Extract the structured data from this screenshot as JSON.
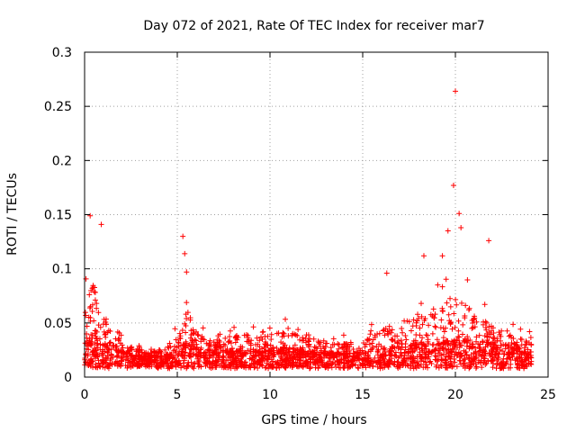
{
  "chart_data": {
    "type": "scatter",
    "title": "Day 072 of 2021, Rate Of TEC Index for receiver mar7",
    "xlabel": "GPS time / hours",
    "ylabel": "ROTI / TECUs",
    "xlim": [
      0,
      25
    ],
    "ylim": [
      0,
      0.3
    ],
    "xticks": [
      0,
      5,
      10,
      15,
      20,
      25
    ],
    "yticks": [
      0,
      0.05,
      0.1,
      0.15,
      0.2,
      0.25,
      0.3
    ],
    "xtick_labels": [
      "0",
      "5",
      "10",
      "15",
      "20",
      "25"
    ],
    "ytick_labels": [
      "0",
      "0.05",
      "0.1",
      "0.15",
      "0.2",
      "0.25",
      "0.3"
    ],
    "grid": true,
    "marker": "+",
    "series_color": "#ff0000",
    "notable_points": [
      {
        "x": 0.3,
        "y": 0.149
      },
      {
        "x": 0.9,
        "y": 0.141
      },
      {
        "x": 5.3,
        "y": 0.13
      },
      {
        "x": 5.4,
        "y": 0.114
      },
      {
        "x": 5.5,
        "y": 0.097
      },
      {
        "x": 16.3,
        "y": 0.096
      },
      {
        "x": 18.3,
        "y": 0.112
      },
      {
        "x": 19.3,
        "y": 0.112
      },
      {
        "x": 19.6,
        "y": 0.135
      },
      {
        "x": 19.9,
        "y": 0.177
      },
      {
        "x": 20.0,
        "y": 0.264
      },
      {
        "x": 20.2,
        "y": 0.151
      },
      {
        "x": 20.3,
        "y": 0.138
      },
      {
        "x": 21.8,
        "y": 0.126
      },
      {
        "x": 24.0,
        "y": 0.042
      }
    ],
    "envelope": {
      "x": [
        0,
        0.5,
        1,
        1.5,
        2,
        3,
        4,
        5,
        5.5,
        6,
        7,
        8,
        9,
        10,
        11,
        12,
        13,
        14,
        15,
        16,
        17,
        18,
        19,
        20,
        21,
        22,
        23,
        24
      ],
      "typical": [
        0.03,
        0.035,
        0.03,
        0.028,
        0.022,
        0.018,
        0.018,
        0.022,
        0.03,
        0.025,
        0.022,
        0.022,
        0.022,
        0.022,
        0.024,
        0.022,
        0.02,
        0.02,
        0.02,
        0.023,
        0.025,
        0.027,
        0.028,
        0.03,
        0.03,
        0.028,
        0.025,
        0.02
      ],
      "upper": [
        0.1,
        0.12,
        0.08,
        0.06,
        0.04,
        0.03,
        0.03,
        0.05,
        0.07,
        0.05,
        0.04,
        0.05,
        0.05,
        0.05,
        0.06,
        0.05,
        0.04,
        0.04,
        0.04,
        0.06,
        0.07,
        0.08,
        0.09,
        0.11,
        0.08,
        0.07,
        0.05,
        0.04
      ]
    }
  }
}
